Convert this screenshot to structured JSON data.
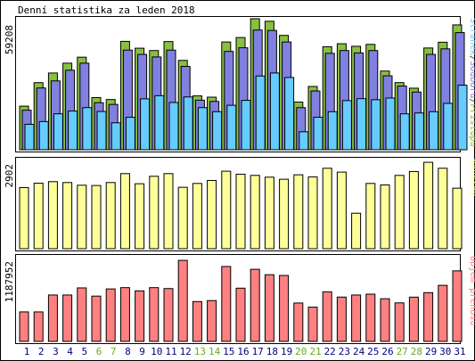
{
  "title": "Denní statistika za leden 2018",
  "chart_data": [
    {
      "type": "bar",
      "panel": "traffic",
      "tick_label": "59208",
      "ymax": 59208,
      "legend": [
        {
          "label": "Stránek",
          "color": "#66ccff"
        },
        {
          "label": "/",
          "color": "#333333"
        },
        {
          "label": "Souborů",
          "color": "#8080e0"
        },
        {
          "label": "/",
          "color": "#333333"
        },
        {
          "label": "Přístupů",
          "color": "#88c040"
        }
      ],
      "categories": [
        "1",
        "2",
        "3",
        "4",
        "5",
        "6",
        "7",
        "8",
        "9",
        "10",
        "11",
        "12",
        "13",
        "14",
        "15",
        "16",
        "17",
        "18",
        "19",
        "20",
        "21",
        "22",
        "23",
        "24",
        "25",
        "26",
        "27",
        "28",
        "29",
        "30",
        "31"
      ],
      "series": [
        {
          "name": "Přístupů",
          "color": "#88c040",
          "values": [
            20400,
            31400,
            35900,
            40500,
            43300,
            24400,
            23500,
            50700,
            47500,
            46400,
            50600,
            41800,
            25200,
            24600,
            50400,
            52500,
            61300,
            60100,
            53500,
            22300,
            29600,
            48200,
            49600,
            48400,
            49300,
            36800,
            31400,
            28800,
            47600,
            50300,
            58400
          ]
        },
        {
          "name": "Souborů",
          "color": "#8080e0",
          "values": [
            18500,
            28900,
            32200,
            37200,
            40500,
            22000,
            21200,
            46600,
            44600,
            43400,
            46600,
            39000,
            23200,
            22600,
            46000,
            47700,
            56000,
            55800,
            50400,
            19700,
            27500,
            45100,
            46400,
            45300,
            46400,
            34600,
            29800,
            27000,
            44600,
            47200,
            54800
          ]
        },
        {
          "name": "Stránek",
          "color": "#66ccff",
          "values": [
            11900,
            13200,
            16800,
            18100,
            19700,
            17900,
            12600,
            15200,
            23800,
            25300,
            22100,
            24700,
            19700,
            17800,
            20800,
            23100,
            34500,
            35900,
            33800,
            8400,
            15200,
            17800,
            23000,
            23900,
            23400,
            24200,
            16800,
            17200,
            17800,
            21700,
            30200
          ]
        }
      ]
    },
    {
      "type": "bar",
      "panel": "visits",
      "tick_label": "2902",
      "ymax": 2902,
      "legend": [
        {
          "label": "Návštěv",
          "color": "#ffff99"
        }
      ],
      "categories": [
        "1",
        "2",
        "3",
        "4",
        "5",
        "6",
        "7",
        "8",
        "9",
        "10",
        "11",
        "12",
        "13",
        "14",
        "15",
        "16",
        "17",
        "18",
        "19",
        "20",
        "21",
        "22",
        "23",
        "24",
        "25",
        "26",
        "27",
        "28",
        "29",
        "30",
        "31"
      ],
      "series": [
        {
          "name": "Návštěv",
          "color": "#ffff99",
          "values": [
            2050,
            2200,
            2250,
            2220,
            2130,
            2120,
            2220,
            2520,
            2180,
            2430,
            2520,
            2060,
            2190,
            2290,
            2600,
            2500,
            2460,
            2400,
            2330,
            2480,
            2410,
            2700,
            2570,
            1190,
            2190,
            2140,
            2460,
            2590,
            2900,
            2700,
            2030
          ]
        }
      ]
    },
    {
      "type": "bar",
      "panel": "volume",
      "tick_label": "1187952",
      "ymax": 1187952,
      "legend": [
        {
          "label": "Objem přenosu",
          "color": "#ff8080"
        }
      ],
      "categories": [
        "1",
        "2",
        "3",
        "4",
        "5",
        "6",
        "7",
        "8",
        "9",
        "10",
        "11",
        "12",
        "13",
        "14",
        "15",
        "16",
        "17",
        "18",
        "19",
        "20",
        "21",
        "22",
        "23",
        "24",
        "25",
        "26",
        "27",
        "28",
        "29",
        "30",
        "31"
      ],
      "series": [
        {
          "name": "Objem přenosu",
          "color": "#ff8080",
          "values": [
            427000,
            427000,
            672000,
            672000,
            775000,
            656000,
            760000,
            779000,
            732000,
            779000,
            765000,
            1174000,
            577000,
            591000,
            1085000,
            771000,
            1044000,
            966000,
            955000,
            556000,
            496000,
            718000,
            642000,
            672000,
            684000,
            618000,
            558000,
            641000,
            706000,
            812000,
            1022000
          ]
        }
      ]
    }
  ],
  "x_axis": {
    "labels": [
      "1",
      "2",
      "3",
      "4",
      "5",
      "6",
      "7",
      "8",
      "9",
      "10",
      "11",
      "12",
      "13",
      "14",
      "15",
      "16",
      "17",
      "18",
      "19",
      "20",
      "21",
      "22",
      "23",
      "24",
      "25",
      "26",
      "27",
      "28",
      "29",
      "30",
      "31"
    ],
    "weekend_days": [
      "6",
      "7",
      "13",
      "14",
      "20",
      "21",
      "27",
      "28"
    ],
    "weekday_color": "#000080",
    "weekend_color": "#66aa22"
  }
}
